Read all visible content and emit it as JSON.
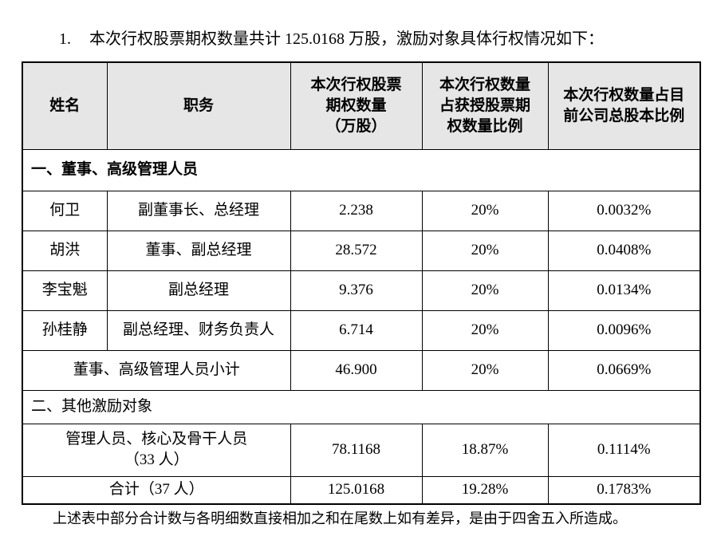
{
  "intro": {
    "number": "1.",
    "text": "本次行权股票期权数量共计 125.0168 万股，激励对象具体行权情况如下："
  },
  "table": {
    "header": [
      [
        "姓名"
      ],
      [
        "职务"
      ],
      [
        "本次行权股票",
        "期权数量",
        "（万股）"
      ],
      [
        "本次行权数量",
        "占获授股票期",
        "权数量比例"
      ],
      [
        "本次行权数量占目",
        "前公司总股本比例"
      ]
    ],
    "section_1": "一、董事、高级管理人员",
    "directors": [
      [
        "何卫",
        "副董事长、总经理",
        "2.238",
        "20%",
        "0.0032%"
      ],
      [
        "胡洪",
        "董事、副总经理",
        "28.572",
        "20%",
        "0.0408%"
      ],
      [
        "李宝魁",
        "副总经理",
        "9.376",
        "20%",
        "0.0134%"
      ],
      [
        "孙桂静",
        "副总经理、财务负责人",
        "6.714",
        "20%",
        "0.0096%"
      ]
    ],
    "directors_subtotal": [
      "董事、高级管理人员小计",
      "46.900",
      "20%",
      "0.0669%"
    ],
    "section_2": "二、其他激励对象",
    "others": {
      "label": [
        "管理人员、核心及骨干人员",
        "（33 人）"
      ],
      "values": [
        "78.1168",
        "18.87%",
        "0.1114%"
      ]
    },
    "total": [
      "合计（37 人）",
      "125.0168",
      "19.28%",
      "0.1783%"
    ]
  },
  "note": "上述表中部分合计数与各明细数直接相加之和在尾数上如有差异，是由于四舍五入所造成。"
}
